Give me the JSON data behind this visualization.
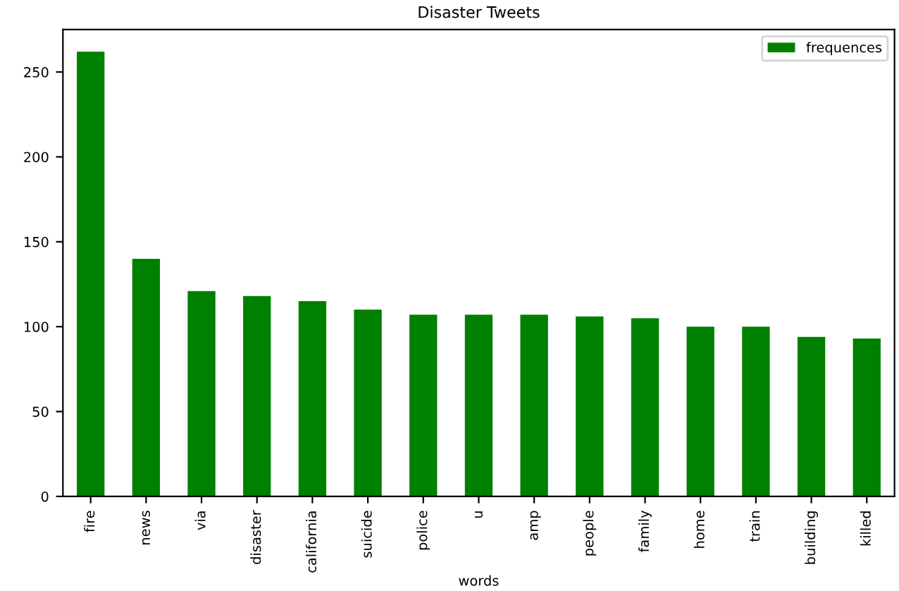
{
  "chart_data": {
    "type": "bar",
    "title": "Disaster Tweets",
    "xlabel": "words",
    "categories": [
      "fire",
      "news",
      "via",
      "disaster",
      "california",
      "suicide",
      "police",
      "u",
      "amp",
      "people",
      "family",
      "home",
      "train",
      "building",
      "killed"
    ],
    "series": [
      {
        "name": "frequences",
        "color": "#008000",
        "values": [
          262,
          140,
          121,
          118,
          115,
          110,
          107,
          107,
          107,
          106,
          105,
          100,
          100,
          94,
          93
        ]
      }
    ],
    "ylim": [
      0,
      275
    ],
    "yticks": [
      0,
      50,
      100,
      150,
      200,
      250
    ],
    "grid": false,
    "legend": "top right"
  }
}
